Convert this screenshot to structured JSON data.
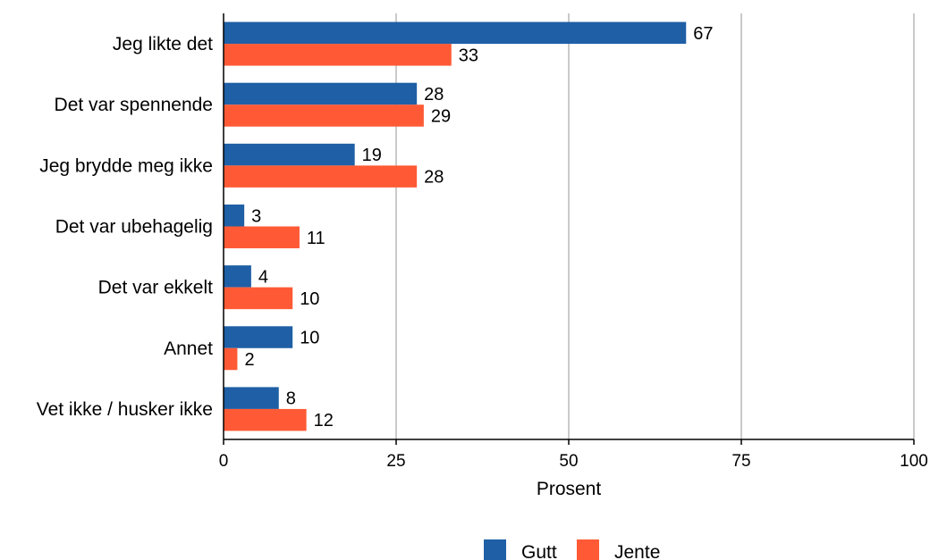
{
  "chart_data": {
    "type": "bar",
    "orientation": "horizontal",
    "categories": [
      "Jeg likte det",
      "Det var spennende",
      "Jeg brydde meg ikke",
      "Det var ubehagelig",
      "Det var ekkelt",
      "Annet",
      "Vet ikke / husker ikke"
    ],
    "series": [
      {
        "name": "Gutt",
        "color": "#1f5fa6",
        "values": [
          67,
          28,
          19,
          3,
          4,
          10,
          8
        ]
      },
      {
        "name": "Jente",
        "color": "#ff5a35",
        "values": [
          33,
          29,
          28,
          11,
          10,
          2,
          12
        ]
      }
    ],
    "xlabel": "Prosent",
    "xlim": [
      0,
      100
    ],
    "xticks": [
      0,
      25,
      50,
      75,
      100
    ],
    "grid": "vertical",
    "legend": "bottom-center"
  }
}
